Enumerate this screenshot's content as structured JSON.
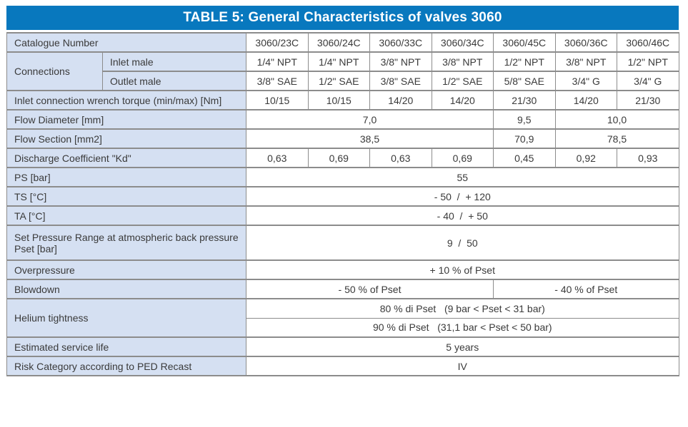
{
  "title": "TABLE 5: General Characteristics of valves 3060",
  "colors": {
    "header_bg": "#0878BE",
    "header_text": "#FFFFFF",
    "label_bg": "#D5E0F2",
    "cell_bg": "#FFFFFF",
    "border": "#8C8C8C",
    "text": "#3A3A3A"
  },
  "table": {
    "catalogue": {
      "label": "Catalogue Number",
      "numbers": [
        "3060/23C",
        "3060/24C",
        "3060/33C",
        "3060/34C",
        "3060/45C",
        "3060/36C",
        "3060/46C"
      ]
    },
    "connections": {
      "label": "Connections",
      "inlet": {
        "label": "Inlet male",
        "values": [
          "1/4\" NPT",
          "1/4\" NPT",
          "3/8\" NPT",
          "3/8\" NPT",
          "1/2\" NPT",
          "3/8\" NPT",
          "1/2\" NPT"
        ]
      },
      "outlet": {
        "label": "Outlet male",
        "values": [
          "3/8\" SAE",
          "1/2\" SAE",
          "3/8\" SAE",
          "1/2\" SAE",
          "5/8\" SAE",
          "3/4\" G",
          "3/4\" G"
        ]
      }
    },
    "torque": {
      "label": "Inlet connection wrench torque (min/max) [Nm]",
      "values": [
        "10/15",
        "10/15",
        "14/20",
        "14/20",
        "21/30",
        "14/20",
        "21/30"
      ]
    },
    "flow_diameter": {
      "label": "Flow Diameter [mm]",
      "values": [
        "7,0",
        "9,5",
        "10,0"
      ]
    },
    "flow_section": {
      "label": "Flow Section [mm2]",
      "values": [
        "38,5",
        "70,9",
        "78,5"
      ]
    },
    "discharge_coefficient": {
      "label": "Discharge Coefficient \"Kd\"",
      "values": [
        "0,63",
        "0,69",
        "0,63",
        "0,69",
        "0,45",
        "0,92",
        "0,93"
      ]
    },
    "ps": {
      "label": "PS [bar]",
      "value": "55"
    },
    "ts": {
      "label": "TS [°C]",
      "value": "- 50  /  + 120"
    },
    "ta": {
      "label": "TA [°C]",
      "value": "- 40  /  + 50"
    },
    "set_pressure": {
      "label": "Set Pressure Range at atmospheric back pressure Pset [bar]",
      "value": "9  /  50"
    },
    "overpressure": {
      "label": "Overpressure",
      "value": "+ 10 % of Pset"
    },
    "blowdown": {
      "label": "Blowdown",
      "left": "- 50 % of Pset",
      "right": "- 40 % of Pset"
    },
    "helium": {
      "label": "Helium tightness",
      "row1": "80 % di Pset   (9 bar < Pset < 31 bar)",
      "row2": "90 % di Pset   (31,1 bar < Pset < 50 bar)"
    },
    "service_life": {
      "label": "Estimated service life",
      "value": "5 years"
    },
    "risk": {
      "label": "Risk Category according to PED Recast",
      "value": "IV"
    }
  }
}
